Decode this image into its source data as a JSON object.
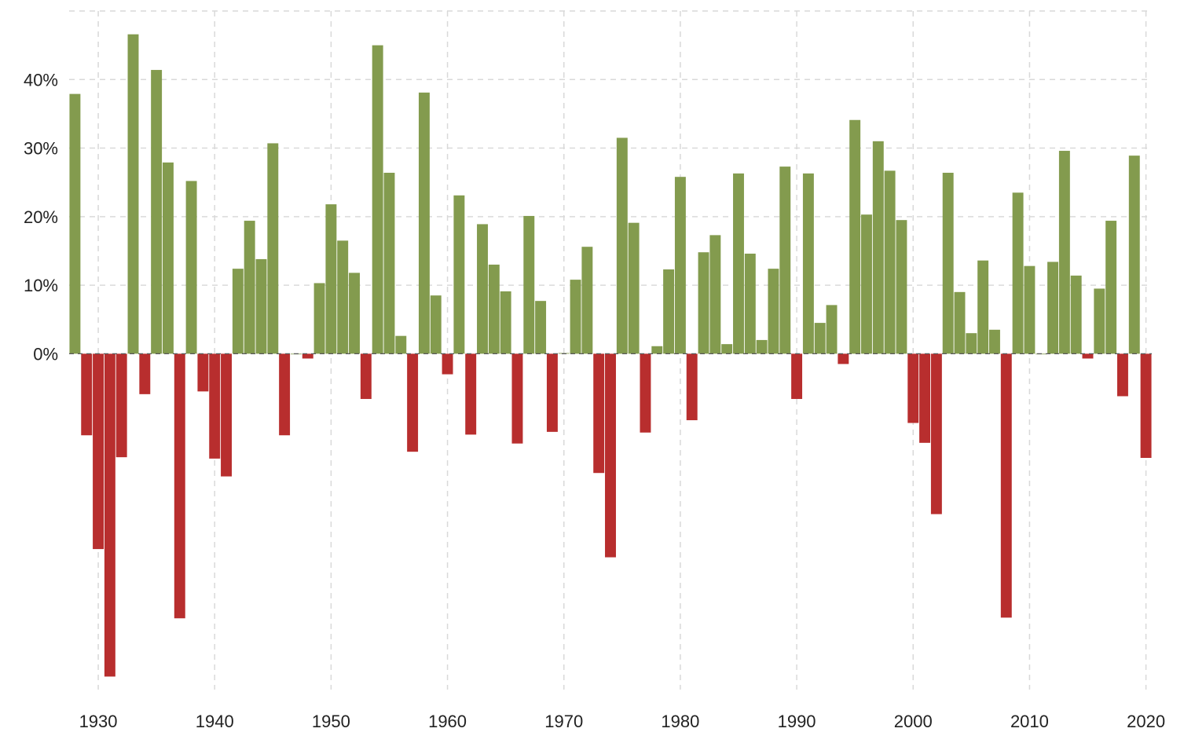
{
  "chart_data": {
    "type": "bar",
    "title": "",
    "xlabel": "",
    "ylabel": "",
    "x": [
      1928,
      1929,
      1930,
      1931,
      1932,
      1933,
      1934,
      1935,
      1936,
      1937,
      1938,
      1939,
      1940,
      1941,
      1942,
      1943,
      1944,
      1945,
      1946,
      1947,
      1948,
      1949,
      1950,
      1951,
      1952,
      1953,
      1954,
      1955,
      1956,
      1957,
      1958,
      1959,
      1960,
      1961,
      1962,
      1963,
      1964,
      1965,
      1966,
      1967,
      1968,
      1969,
      1970,
      1971,
      1972,
      1973,
      1974,
      1975,
      1976,
      1977,
      1978,
      1979,
      1980,
      1981,
      1982,
      1983,
      1984,
      1985,
      1986,
      1987,
      1988,
      1989,
      1990,
      1991,
      1992,
      1993,
      1994,
      1995,
      1996,
      1997,
      1998,
      1999,
      2000,
      2001,
      2002,
      2003,
      2004,
      2005,
      2006,
      2007,
      2008,
      2009,
      2010,
      2011,
      2012,
      2013,
      2014,
      2015,
      2016,
      2017,
      2018,
      2019,
      2020
    ],
    "values": [
      37.9,
      -11.9,
      -28.5,
      -47.1,
      -15.1,
      46.6,
      -5.9,
      41.4,
      27.9,
      -38.6,
      25.2,
      -5.5,
      -15.3,
      -17.9,
      12.4,
      19.4,
      13.8,
      30.7,
      -11.9,
      0.0,
      -0.7,
      10.3,
      21.8,
      16.5,
      11.8,
      -6.6,
      45.0,
      26.4,
      2.6,
      -14.3,
      38.1,
      8.5,
      -3.0,
      23.1,
      -11.8,
      18.9,
      13.0,
      9.1,
      -13.1,
      20.1,
      7.7,
      -11.4,
      0.1,
      10.8,
      15.6,
      -17.4,
      -29.7,
      31.5,
      19.1,
      -11.5,
      1.1,
      12.3,
      25.8,
      -9.7,
      14.8,
      17.3,
      1.4,
      26.3,
      14.6,
      2.0,
      12.4,
      27.3,
      -6.6,
      26.3,
      4.5,
      7.1,
      -1.5,
      34.1,
      20.3,
      31.0,
      26.7,
      19.5,
      -10.1,
      -13.0,
      -23.4,
      26.4,
      9.0,
      3.0,
      13.6,
      3.5,
      -38.5,
      23.5,
      12.8,
      0.0,
      13.4,
      29.6,
      11.4,
      -0.7,
      9.5,
      19.4,
      -6.2,
      28.9,
      -15.2
    ],
    "y_ticks": [
      0,
      10,
      20,
      30,
      40
    ],
    "y_tick_labels": [
      "0%",
      "10%",
      "20%",
      "30%",
      "40%"
    ],
    "x_ticks": [
      1930,
      1940,
      1950,
      1960,
      1970,
      1980,
      1990,
      2000,
      2010,
      2020
    ],
    "x_tick_labels": [
      "1930",
      "1940",
      "1950",
      "1960",
      "1970",
      "1980",
      "1990",
      "2000",
      "2010",
      "2020"
    ],
    "xlim": [
      1927.5,
      2020.5
    ],
    "ylim": [
      -49,
      50
    ],
    "grid": true,
    "colors": {
      "positive": "#839b4e",
      "negative": "#b82e2e",
      "grid": "#d9d9d9"
    }
  }
}
